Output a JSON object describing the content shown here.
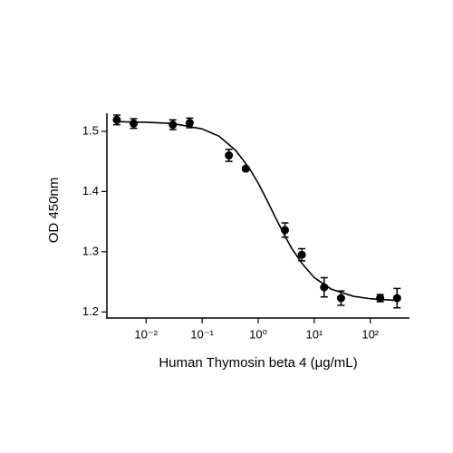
{
  "chart_data": {
    "type": "scatter",
    "x_label": "Human Thymosin beta 4 (μg/mL)",
    "y_label": "OD 450nm",
    "x_scale": "log",
    "xlim": [
      0.002,
      500
    ],
    "ylim": [
      1.19,
      1.53
    ],
    "xticks": [
      {
        "value": 0.01,
        "label": "10⁻²"
      },
      {
        "value": 0.1,
        "label": "10⁻¹"
      },
      {
        "value": 1,
        "label": "10⁰"
      },
      {
        "value": 10,
        "label": "10¹"
      },
      {
        "value": 100,
        "label": "10²"
      }
    ],
    "yticks": [
      1.2,
      1.3,
      1.4,
      1.5
    ],
    "color": "#000000",
    "x": [
      0.003,
      0.006,
      0.03,
      0.06,
      0.3,
      0.6,
      3,
      6,
      15,
      30,
      150,
      300
    ],
    "values": [
      1.519,
      1.513,
      1.511,
      1.514,
      1.46,
      1.438,
      1.336,
      1.295,
      1.241,
      1.223,
      1.223,
      1.223
    ],
    "errors": [
      0.008,
      0.008,
      0.008,
      0.008,
      0.01,
      0.003,
      0.012,
      0.01,
      0.016,
      0.012,
      0.006,
      0.016
    ],
    "fit": {
      "x": [
        0.003,
        0.01,
        0.03,
        0.1,
        0.2,
        0.4,
        0.7,
        1,
        1.5,
        2,
        3,
        4,
        6,
        10,
        20,
        50,
        100,
        300
      ],
      "values": [
        1.516,
        1.515,
        1.513,
        1.504,
        1.492,
        1.468,
        1.438,
        1.414,
        1.382,
        1.358,
        1.326,
        1.305,
        1.281,
        1.257,
        1.238,
        1.226,
        1.222,
        1.219
      ]
    }
  }
}
